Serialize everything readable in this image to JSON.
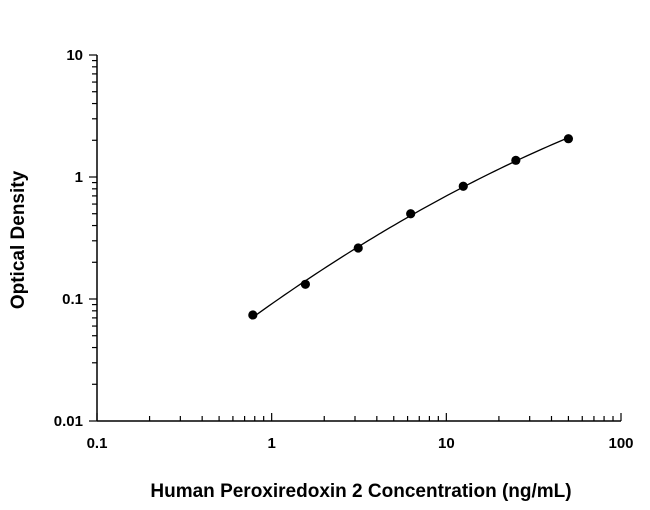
{
  "chart_data": {
    "type": "scatter",
    "title": "",
    "xlabel": "Human Peroxiredoxin 2 Concentration (ng/mL)",
    "ylabel": "Optical Density",
    "x_scale": "log",
    "y_scale": "log",
    "xlim": [
      0.1,
      100
    ],
    "ylim": [
      0.01,
      10
    ],
    "x_ticks": [
      "0.1",
      "1",
      "10",
      "100"
    ],
    "y_ticks": [
      "0.01",
      "0.1",
      "1",
      "10"
    ],
    "grid": false,
    "legend": "none",
    "marker_color": "#000000",
    "line_color": "#000000",
    "series": [
      {
        "x": [
          0.78,
          1.56,
          3.13,
          6.25,
          12.5,
          25,
          50
        ],
        "y": [
          0.074,
          0.132,
          0.262,
          0.5,
          0.84,
          1.37,
          2.06
        ],
        "fit": "smooth-curve"
      }
    ]
  }
}
